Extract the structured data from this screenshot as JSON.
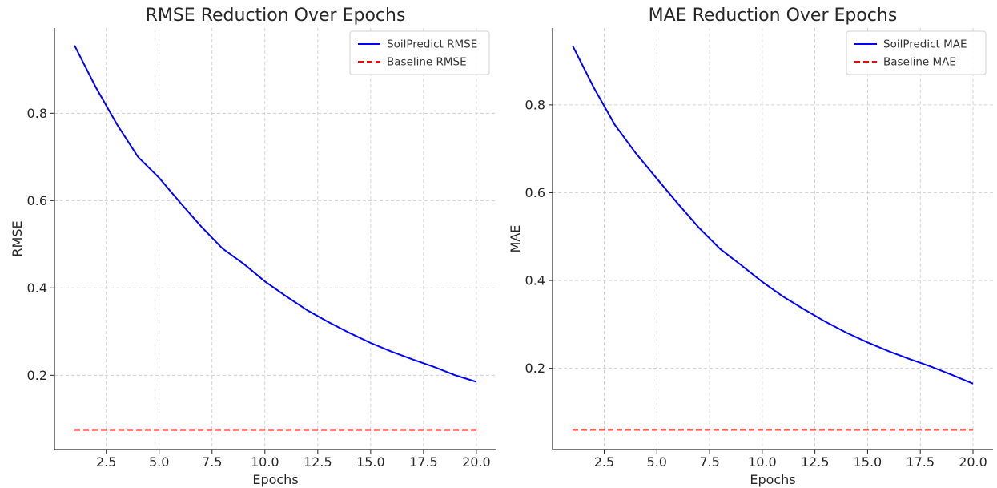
{
  "chart_data": [
    {
      "type": "line",
      "title": "RMSE Reduction Over Epochs",
      "xlabel": "Epochs",
      "ylabel": "RMSE",
      "xlim": [
        0.05,
        20.95
      ],
      "ylim": [
        0.03,
        0.995
      ],
      "xticks": [
        2.5,
        5.0,
        7.5,
        10.0,
        12.5,
        15.0,
        17.5,
        20.0
      ],
      "xtick_labels": [
        "2.5",
        "5.0",
        "7.5",
        "10.0",
        "12.5",
        "15.0",
        "17.5",
        "20.0"
      ],
      "yticks": [
        0.2,
        0.4,
        0.6,
        0.8
      ],
      "ytick_labels": [
        "0.2",
        "0.4",
        "0.6",
        "0.8"
      ],
      "grid": true,
      "legend_position": "top-right",
      "x": [
        1,
        2,
        3,
        4,
        5,
        6,
        7,
        8,
        9,
        10,
        11,
        12,
        13,
        14,
        15,
        16,
        17,
        18,
        19,
        20
      ],
      "series": [
        {
          "name": "SoilPredict RMSE",
          "color": "#0000ff",
          "style": "solid",
          "values": [
            0.955,
            0.86,
            0.775,
            0.7,
            0.652,
            0.595,
            0.54,
            0.49,
            0.455,
            0.415,
            0.381,
            0.349,
            0.322,
            0.297,
            0.274,
            0.254,
            0.236,
            0.219,
            0.2,
            0.185
          ]
        },
        {
          "name": "Baseline RMSE",
          "color": "#ff0000",
          "style": "dashed",
          "values": [
            0.075,
            0.075,
            0.075,
            0.075,
            0.075,
            0.075,
            0.075,
            0.075,
            0.075,
            0.075,
            0.075,
            0.075,
            0.075,
            0.075,
            0.075,
            0.075,
            0.075,
            0.075,
            0.075,
            0.075
          ]
        }
      ]
    },
    {
      "type": "line",
      "title": "MAE Reduction Over Epochs",
      "xlabel": "Epochs",
      "ylabel": "MAE",
      "xlim": [
        0.05,
        20.95
      ],
      "ylim": [
        0.015,
        0.975
      ],
      "xticks": [
        2.5,
        5.0,
        7.5,
        10.0,
        12.5,
        15.0,
        17.5,
        20.0
      ],
      "xtick_labels": [
        "2.5",
        "5.0",
        "7.5",
        "10.0",
        "12.5",
        "15.0",
        "17.5",
        "20.0"
      ],
      "yticks": [
        0.2,
        0.4,
        0.6,
        0.8
      ],
      "ytick_labels": [
        "0.2",
        "0.4",
        "0.6",
        "0.8"
      ],
      "grid": true,
      "legend_position": "top-right",
      "x": [
        1,
        2,
        3,
        4,
        5,
        6,
        7,
        8,
        9,
        10,
        11,
        12,
        13,
        14,
        15,
        16,
        17,
        18,
        19,
        20
      ],
      "series": [
        {
          "name": "SoilPredict MAE",
          "color": "#0000ff",
          "style": "solid",
          "values": [
            0.935,
            0.84,
            0.755,
            0.69,
            0.632,
            0.575,
            0.52,
            0.472,
            0.435,
            0.397,
            0.363,
            0.334,
            0.306,
            0.281,
            0.259,
            0.239,
            0.221,
            0.204,
            0.185,
            0.165
          ]
        },
        {
          "name": "Baseline MAE",
          "color": "#ff0000",
          "style": "dashed",
          "values": [
            0.06,
            0.06,
            0.06,
            0.06,
            0.06,
            0.06,
            0.06,
            0.06,
            0.06,
            0.06,
            0.06,
            0.06,
            0.06,
            0.06,
            0.06,
            0.06,
            0.06,
            0.06,
            0.06,
            0.06
          ]
        }
      ]
    }
  ]
}
